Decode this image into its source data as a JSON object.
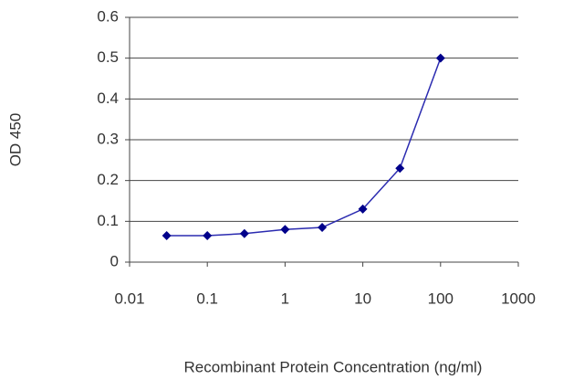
{
  "chart_data": {
    "type": "line",
    "xlabel": "Recombinant Protein Concentration (ng/ml)",
    "ylabel": "OD 450",
    "x": [
      0.03,
      0.1,
      0.3,
      1,
      3,
      10,
      30,
      100
    ],
    "series": [
      {
        "color": "#2b2bb0",
        "marker_color": "#00008b",
        "values": [
          0.065,
          0.065,
          0.07,
          0.08,
          0.085,
          0.13,
          0.23,
          0.5
        ]
      }
    ],
    "xscale": "log",
    "xlim": [
      0.01,
      1000
    ],
    "xticks": [
      0.01,
      0.1,
      1,
      10,
      100,
      1000
    ],
    "ylim": [
      0,
      0.6
    ],
    "yticks": [
      0,
      0.1,
      0.2,
      0.3,
      0.4,
      0.5,
      0.6
    ],
    "grid": true
  }
}
